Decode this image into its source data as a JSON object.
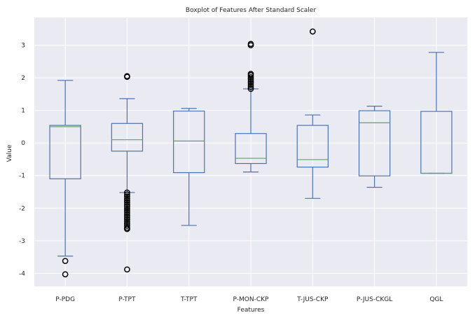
{
  "chart_data": {
    "type": "box",
    "title": "Boxplot of Features After Standard Scaler",
    "xlabel": "Features",
    "ylabel": "Value",
    "ylim": [
      -4.4,
      3.85
    ],
    "yticks": [
      -4,
      -3,
      -2,
      -1,
      0,
      1,
      2,
      3
    ],
    "grid": true,
    "colors": {
      "background": "#EAEAF2",
      "grid": "#FFFFFF",
      "box": "#4C72B0",
      "median": "#55A868"
    },
    "categories": [
      "P-PDG",
      "P-TPT",
      "T-TPT",
      "P-MON-CKP",
      "T-JUS-CKP",
      "P-JUS-CKGL",
      "QGL"
    ],
    "boxes": [
      {
        "label": "P-PDG",
        "whisker_low": -3.47,
        "q1": -1.1,
        "median": 0.5,
        "q3": 0.54,
        "whisker_high": 1.92,
        "outliers": [
          -3.62,
          -4.03
        ]
      },
      {
        "label": "P-TPT",
        "whisker_low": -1.52,
        "q1": -0.25,
        "median": 0.1,
        "q3": 0.6,
        "whisker_high": 1.36,
        "outliers": [
          2.03,
          2.05,
          -3.88,
          -1.52,
          -1.58,
          -1.64,
          -1.7,
          -1.76,
          -1.82,
          -1.88,
          -1.94,
          -2.0,
          -2.06,
          -2.12,
          -2.18,
          -2.24,
          -2.3,
          -2.36,
          -2.42,
          -2.48,
          -2.54,
          -2.6,
          -2.64
        ]
      },
      {
        "label": "T-TPT",
        "whisker_low": -2.53,
        "q1": -0.91,
        "median": 0.06,
        "q3": 0.98,
        "whisker_high": 1.06,
        "outliers": []
      },
      {
        "label": "P-MON-CKP",
        "whisker_low": -0.89,
        "q1": -0.63,
        "median": -0.47,
        "q3": 0.29,
        "whisker_high": 1.66,
        "outliers": [
          1.66,
          1.72,
          1.78,
          1.84,
          1.9,
          1.96,
          2.02,
          2.08,
          2.12,
          3.0,
          3.04
        ]
      },
      {
        "label": "T-JUS-CKP",
        "whisker_low": -1.7,
        "q1": -0.74,
        "median": -0.51,
        "q3": 0.54,
        "whisker_high": 0.86,
        "outliers": [
          3.42
        ]
      },
      {
        "label": "P-JUS-CKGL",
        "whisker_low": -1.36,
        "q1": -1.01,
        "median": 0.62,
        "q3": 0.99,
        "whisker_high": 1.13,
        "outliers": []
      },
      {
        "label": "QGL",
        "whisker_low": -0.93,
        "q1": -0.93,
        "median": -0.93,
        "q3": 0.97,
        "whisker_high": 2.78,
        "outliers": []
      }
    ]
  }
}
